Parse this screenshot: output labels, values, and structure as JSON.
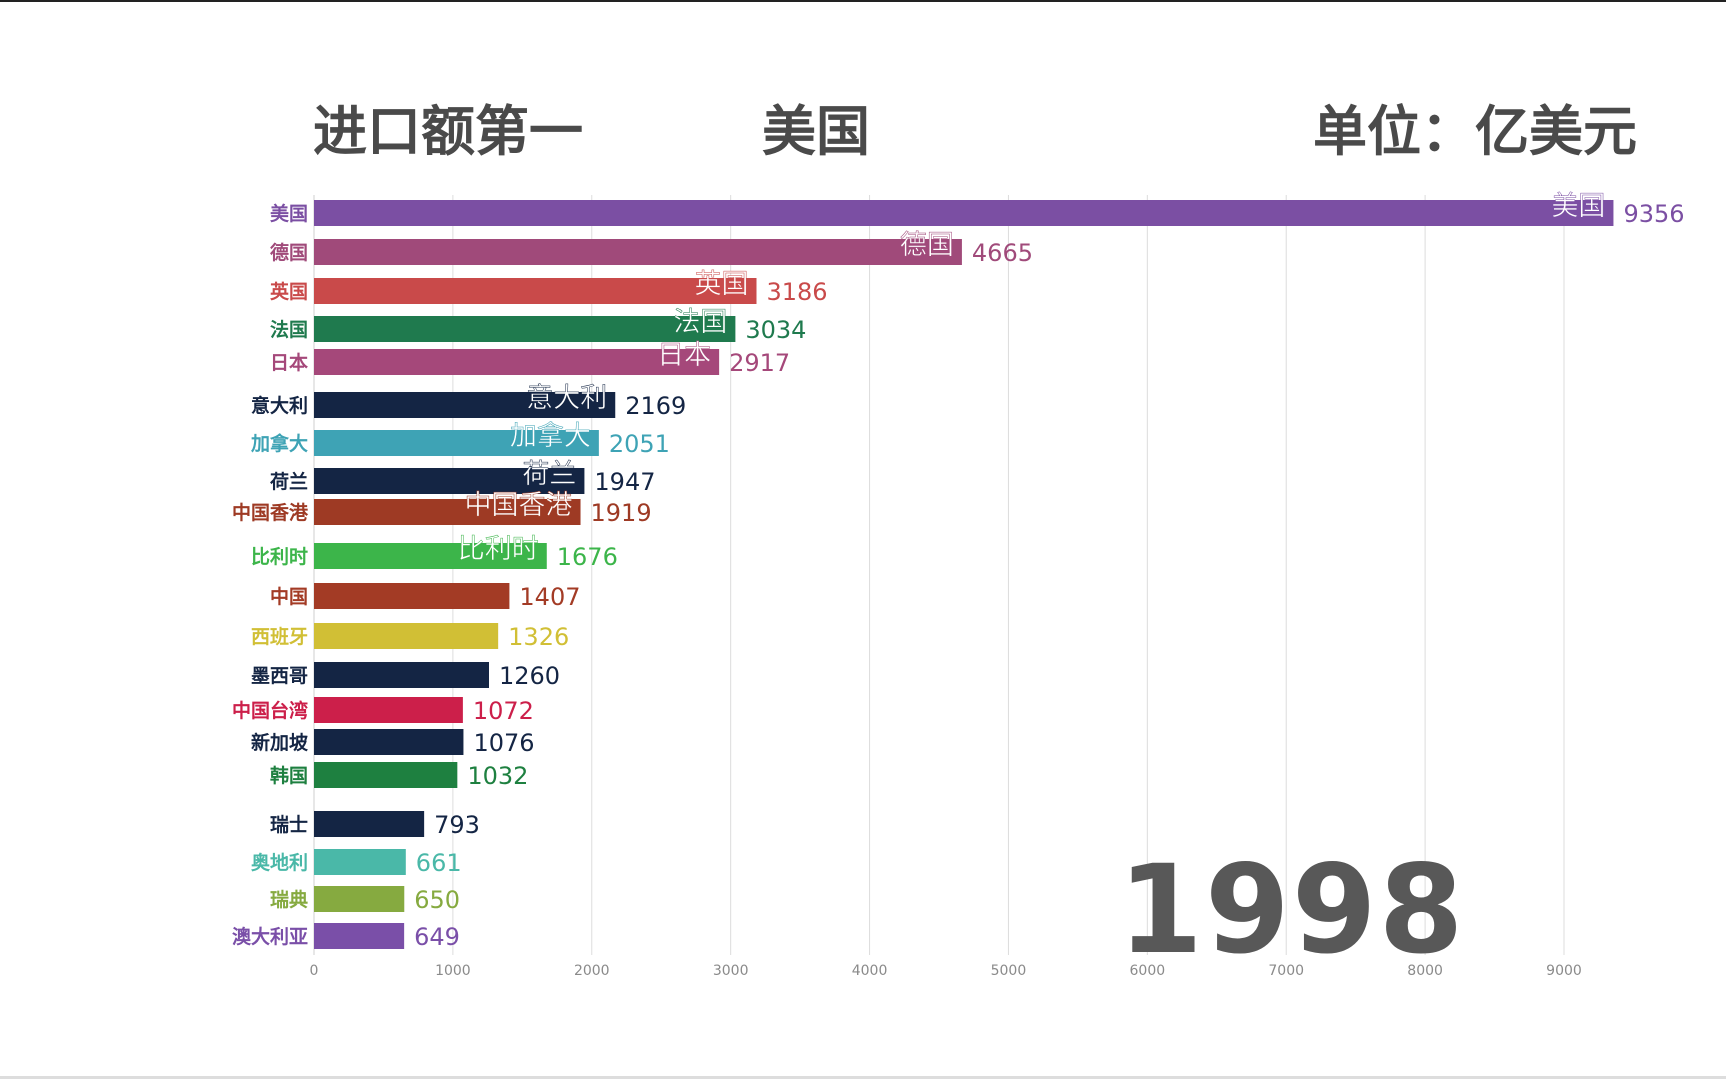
{
  "header": {
    "title": "进口额第一",
    "leader": "美国",
    "unit": "单位：亿美元"
  },
  "year": "1998",
  "chart_data": {
    "type": "bar",
    "orientation": "horizontal",
    "xlim": [
      0,
      9600
    ],
    "xticks": [
      0,
      1000,
      2000,
      3000,
      4000,
      5000,
      6000,
      7000,
      8000,
      9000
    ],
    "grid": true,
    "categories": [
      "美国",
      "德国",
      "英国",
      "法国",
      "日本",
      "意大利",
      "加拿大",
      "荷兰",
      "中国香港",
      "比利时",
      "中国",
      "西班牙",
      "墨西哥",
      "中国台湾",
      "新加坡",
      "韩国",
      "瑞士",
      "奥地利",
      "瑞典",
      "澳大利亚"
    ],
    "values": [
      9356,
      4665,
      3186,
      3034,
      2917,
      2169,
      2051,
      1947,
      1919,
      1676,
      1407,
      1326,
      1260,
      1072,
      1076,
      1032,
      793,
      661,
      650,
      649
    ],
    "inner_labels": [
      "美国",
      "德国",
      "英国",
      "法国",
      "日本",
      "意大利",
      "加拿大",
      "荷兰",
      "中国香港",
      "比利时",
      "",
      "",
      "",
      "",
      "",
      "",
      "",
      "",
      "",
      ""
    ],
    "colors": [
      "#7b4fa3",
      "#a04a7a",
      "#c94a4a",
      "#1f7a4e",
      "#a5487a",
      "#142544",
      "#3ea3b5",
      "#142544",
      "#9e3a24",
      "#3cb54a",
      "#a33b25",
      "#d1bf35",
      "#142544",
      "#cc1f4a",
      "#142544",
      "#1e8040",
      "#142544",
      "#4ab8a8",
      "#86aa40",
      "#7a4fa8"
    ]
  }
}
